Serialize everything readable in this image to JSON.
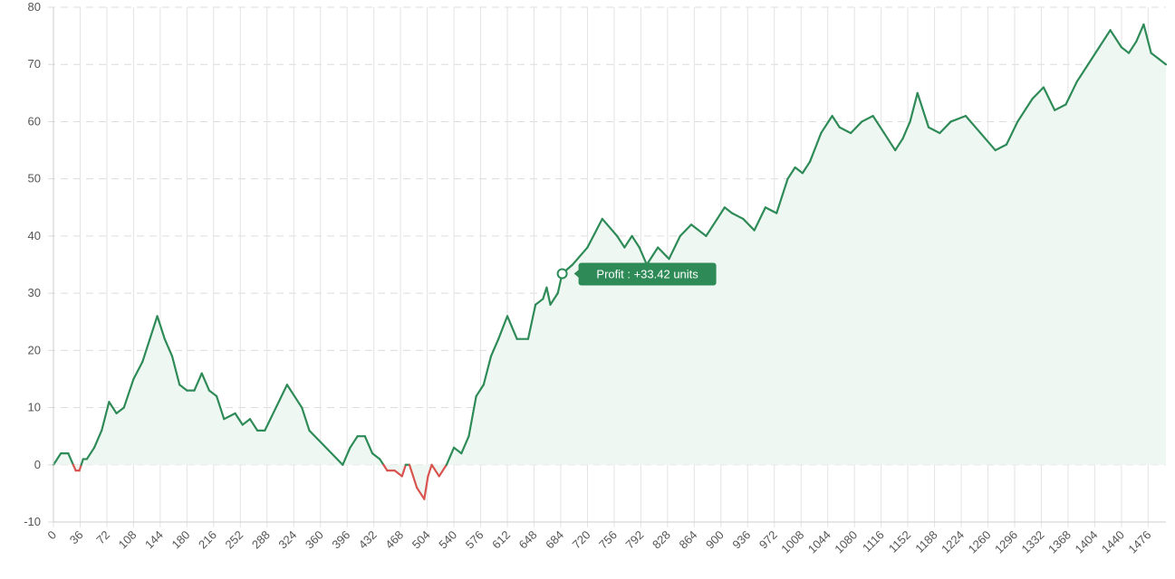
{
  "chart_data": {
    "type": "area",
    "title": "",
    "xlabel": "",
    "ylabel": "",
    "xlim": [
      0,
      1500
    ],
    "ylim": [
      -10,
      80
    ],
    "y_ticks": [
      -10,
      0,
      10,
      20,
      30,
      40,
      50,
      60,
      70,
      80
    ],
    "x_ticks": [
      0,
      36,
      72,
      108,
      144,
      180,
      216,
      252,
      288,
      324,
      360,
      396,
      432,
      468,
      504,
      540,
      576,
      612,
      648,
      684,
      720,
      756,
      792,
      828,
      864,
      900,
      936,
      972,
      1008,
      1044,
      1080,
      1116,
      1152,
      1188,
      1224,
      1260,
      1296,
      1332,
      1368,
      1404,
      1440,
      1476
    ],
    "grid": true,
    "legend": "none",
    "colors": {
      "positive": "#2e8b57",
      "negative": "#d9534f",
      "fill": "#eef7f2",
      "grid": "#dcdcdc"
    },
    "x": [
      0,
      10,
      20,
      30,
      35,
      40,
      45,
      55,
      65,
      75,
      85,
      95,
      108,
      120,
      130,
      140,
      150,
      160,
      170,
      180,
      190,
      200,
      210,
      220,
      230,
      245,
      255,
      265,
      275,
      285,
      300,
      315,
      325,
      335,
      345,
      360,
      375,
      390,
      400,
      410,
      420,
      430,
      440,
      450,
      460,
      470,
      475,
      480,
      490,
      500,
      505,
      510,
      520,
      530,
      540,
      550,
      560,
      570,
      580,
      590,
      600,
      612,
      625,
      640,
      650,
      660,
      665,
      670,
      680,
      686,
      700,
      720,
      740,
      760,
      770,
      780,
      790,
      800,
      815,
      830,
      845,
      860,
      880,
      895,
      905,
      915,
      930,
      945,
      960,
      975,
      990,
      1000,
      1010,
      1020,
      1035,
      1050,
      1060,
      1075,
      1090,
      1105,
      1120,
      1135,
      1145,
      1155,
      1165,
      1180,
      1195,
      1210,
      1230,
      1250,
      1270,
      1285,
      1300,
      1320,
      1335,
      1350,
      1365,
      1380,
      1395,
      1410,
      1425,
      1440,
      1450,
      1460,
      1470,
      1480,
      1490,
      1500
    ],
    "values": [
      0,
      2,
      2,
      -1,
      -1,
      1,
      1,
      3,
      6,
      11,
      9,
      10,
      15,
      18,
      22,
      26,
      22,
      19,
      14,
      13,
      13,
      16,
      13,
      12,
      8,
      9,
      7,
      8,
      6,
      6,
      10,
      14,
      12,
      10,
      6,
      4,
      2,
      0,
      3,
      5,
      5,
      2,
      1,
      -1,
      -1,
      -2,
      0,
      0,
      -4,
      -6,
      -2,
      0,
      -2,
      0,
      3,
      2,
      5,
      12,
      14,
      19,
      22,
      26,
      22,
      22,
      28,
      29,
      31,
      28,
      30,
      33.42,
      35,
      38,
      43,
      40,
      38,
      40,
      38,
      35,
      38,
      36,
      40,
      42,
      40,
      43,
      45,
      44,
      43,
      41,
      45,
      44,
      50,
      52,
      51,
      53,
      58,
      61,
      59,
      58,
      60,
      61,
      58,
      55,
      57,
      60,
      65,
      59,
      58,
      60,
      61,
      58,
      55,
      56,
      60,
      64,
      66,
      62,
      63,
      67,
      70,
      73,
      76,
      73,
      72,
      74,
      77,
      72,
      71,
      70
    ]
  },
  "tooltip": {
    "text": "Profit : +33.42 units",
    "x": 686,
    "y": 33.42
  }
}
